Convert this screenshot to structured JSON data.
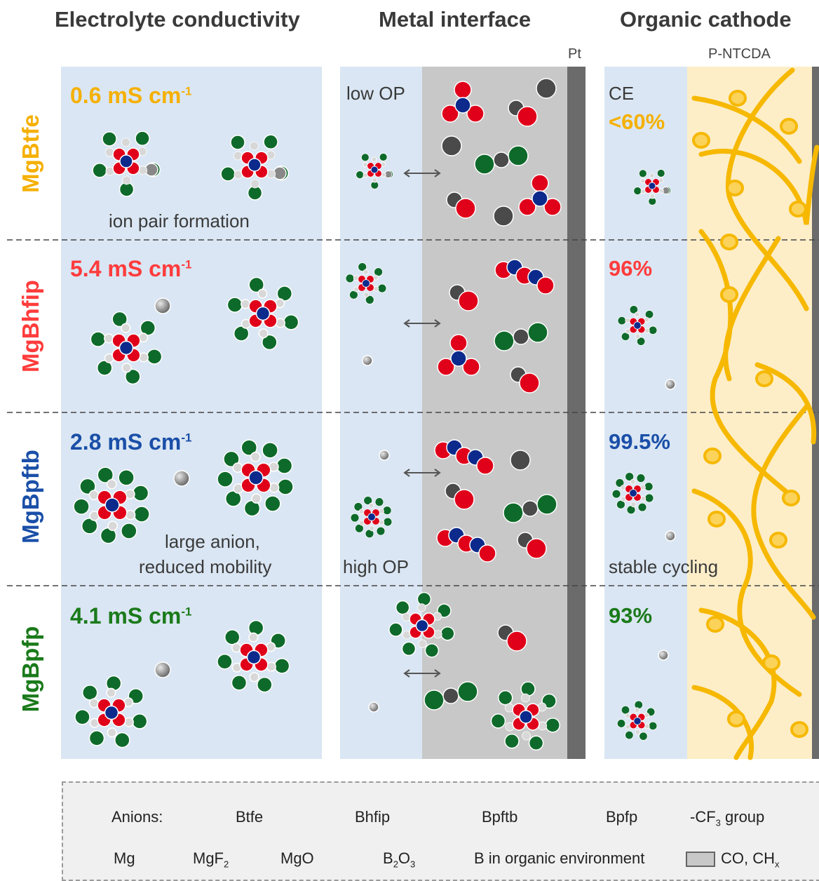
{
  "headers": {
    "col1": "Electrolyte conductivity",
    "col2": "Metal interface",
    "col3": "Organic cathode"
  },
  "small_labels": {
    "pt": "Pt",
    "pntcda": "P-NTCDA",
    "ce": "CE"
  },
  "rows": [
    {
      "name": "MgBtfe",
      "color": "#f5b000",
      "conductivity": "0.6 mS cm",
      "ce": "<60%"
    },
    {
      "name": "MgBhfip",
      "color": "#ff3c3c",
      "conductivity": "5.4 mS cm",
      "ce": "96%"
    },
    {
      "name": "MgBpftb",
      "color": "#1a4fa8",
      "conductivity": "2.8 mS cm",
      "ce": "99.5%"
    },
    {
      "name": "MgBpfp",
      "color": "#1a7a1a",
      "conductivity": "4.1 mS cm",
      "ce": "93%"
    }
  ],
  "unit_superscript": "-1",
  "notes": {
    "ion_pair": "ion pair formation",
    "large_anion_1": "large anion,",
    "large_anion_2": "reduced mobility",
    "low_op": "low OP",
    "high_op": "high OP",
    "stable": "stable cycling"
  },
  "legend": {
    "anions_label": "Anions:",
    "btfe": "Btfe",
    "bhfip": "Bhfip",
    "bpftb": "Bpftb",
    "bpfp": "Bpfp",
    "cf3": "-CF",
    "cf3_sub": "3",
    "cf3_tail": " group",
    "mg": "Mg",
    "mgf": "MgF",
    "mgf_sub": "2",
    "mgo": "MgO",
    "b2o3_a": "B",
    "b2o3_sub": "2",
    "b2o3_b": "O",
    "b2o3_sub2": "3",
    "b_org": "B in organic environment",
    "co": "CO, CH",
    "co_sub": "x"
  },
  "colors": {
    "electrolyte_bg": "#dae6f3",
    "interface_grey": "#c8c8c8",
    "pt": "#6b6b6b",
    "cathode_bg": "#fdeec8",
    "polymer": "#f6b800",
    "boron": "#0c2a8c",
    "oxygen": "#e0001a",
    "fluorine_group": "#0e6a2a",
    "magnesium": "#4a4a4a",
    "hydrogen": "#d8d8d8"
  }
}
